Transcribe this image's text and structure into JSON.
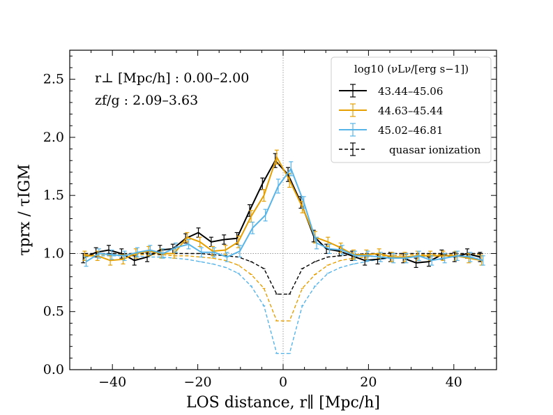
{
  "chart_data": {
    "type": "line",
    "xlabel": "LOS distance, r∥ [Mpc/h]",
    "ylabel": "τprx / τIGM",
    "xlim": [
      -50,
      50
    ],
    "ylim": [
      0.0,
      2.75
    ],
    "xticks": [
      -40,
      -20,
      0,
      20,
      40
    ],
    "xtick_labels": [
      "−40",
      "−20",
      "0",
      "20",
      "40"
    ],
    "yticks": [
      0.0,
      0.5,
      1.0,
      1.5,
      2.0,
      2.5
    ],
    "ytick_labels": [
      "0.0",
      "0.5",
      "1.0",
      "1.5",
      "2.0",
      "2.5"
    ],
    "reference_lines": {
      "x": 0,
      "y": 1.0
    },
    "annotations": {
      "rperp": "r⊥ [Mpc/h] : 0.00–2.00",
      "zfg": "zf/g : 2.09–3.63"
    },
    "legend": {
      "title": "log10 (νLν/[erg s−1])",
      "location": "upper right"
    },
    "x": [
      -46.5,
      -43.5,
      -40.5,
      -37.5,
      -34.5,
      -31.5,
      -28.5,
      -25.5,
      -22.5,
      -19.5,
      -16.5,
      -13.5,
      -10.5,
      -7.5,
      -4.5,
      -1.5,
      1.5,
      4.5,
      7.5,
      10.5,
      13.5,
      16.5,
      19.5,
      22.5,
      25.5,
      28.5,
      31.5,
      34.5,
      37.5,
      40.5,
      43.5,
      46.5
    ],
    "series": [
      {
        "name": "43.44–45.06",
        "color": "#000000",
        "values": [
          0.96,
          1.01,
          1.03,
          1.0,
          0.94,
          0.97,
          1.03,
          1.04,
          1.13,
          1.18,
          1.1,
          1.12,
          1.13,
          1.37,
          1.6,
          1.8,
          1.68,
          1.44,
          1.15,
          1.04,
          1.02,
          0.98,
          0.94,
          0.95,
          0.97,
          0.96,
          0.92,
          0.93,
          0.99,
          0.97,
          1.0,
          0.97
        ],
        "err": [
          0.04,
          0.04,
          0.04,
          0.04,
          0.04,
          0.04,
          0.04,
          0.04,
          0.04,
          0.04,
          0.04,
          0.04,
          0.05,
          0.05,
          0.05,
          0.06,
          0.06,
          0.05,
          0.05,
          0.04,
          0.04,
          0.04,
          0.04,
          0.04,
          0.04,
          0.04,
          0.04,
          0.04,
          0.04,
          0.04,
          0.04,
          0.04
        ]
      },
      {
        "name": "44.63–45.44",
        "color": "#e69f00",
        "values": [
          0.98,
          0.98,
          0.94,
          0.95,
          1.0,
          1.02,
          1.0,
          1.0,
          1.14,
          1.1,
          1.02,
          1.03,
          1.1,
          1.32,
          1.5,
          1.83,
          1.63,
          1.4,
          1.14,
          1.1,
          1.05,
          0.99,
          0.99,
          1.0,
          0.97,
          0.97,
          0.98,
          0.98,
          0.98,
          0.98,
          0.96,
          0.94
        ],
        "err": [
          0.04,
          0.04,
          0.04,
          0.04,
          0.04,
          0.04,
          0.04,
          0.04,
          0.04,
          0.04,
          0.04,
          0.04,
          0.05,
          0.05,
          0.05,
          0.06,
          0.06,
          0.05,
          0.05,
          0.04,
          0.04,
          0.04,
          0.04,
          0.04,
          0.04,
          0.04,
          0.04,
          0.04,
          0.04,
          0.04,
          0.04,
          0.04
        ]
      },
      {
        "name": "45.02–46.81",
        "color": "#56b4e9",
        "values": [
          0.93,
          1.0,
          0.99,
          0.98,
          1.01,
          1.03,
          1.0,
          1.05,
          1.08,
          1.01,
          1.01,
          0.97,
          1.02,
          1.22,
          1.33,
          1.58,
          1.73,
          1.44,
          1.09,
          1.04,
          1.03,
          0.98,
          0.98,
          0.97,
          0.96,
          0.96,
          0.98,
          0.94,
          0.96,
          0.98,
          0.97,
          0.94
        ],
        "err": [
          0.04,
          0.04,
          0.04,
          0.04,
          0.04,
          0.04,
          0.04,
          0.04,
          0.04,
          0.04,
          0.04,
          0.04,
          0.05,
          0.05,
          0.05,
          0.06,
          0.06,
          0.05,
          0.05,
          0.04,
          0.04,
          0.04,
          0.04,
          0.04,
          0.04,
          0.04,
          0.04,
          0.04,
          0.04,
          0.04,
          0.04,
          0.04
        ]
      }
    ],
    "model_series": [
      {
        "name": "quasar ionization",
        "color": "#000000",
        "values": [
          1.0,
          1.0,
          1.0,
          1.0,
          1.0,
          1.0,
          1.0,
          1.0,
          1.0,
          1.0,
          0.99,
          0.98,
          0.97,
          0.93,
          0.87,
          0.65,
          0.65,
          0.87,
          0.93,
          0.97,
          0.98,
          0.99,
          1.0,
          1.0,
          1.0,
          1.0,
          1.0,
          1.0,
          1.0,
          1.0,
          1.0,
          1.0
        ]
      },
      {
        "name": "",
        "color": "#e69f00",
        "values": [
          0.99,
          0.99,
          0.99,
          0.99,
          0.99,
          0.99,
          0.99,
          0.98,
          0.98,
          0.97,
          0.96,
          0.94,
          0.9,
          0.82,
          0.7,
          0.42,
          0.42,
          0.7,
          0.82,
          0.9,
          0.94,
          0.96,
          0.97,
          0.98,
          0.98,
          0.99,
          0.99,
          0.99,
          0.99,
          0.99,
          0.99,
          0.99
        ]
      },
      {
        "name": "",
        "color": "#56b4e9",
        "values": [
          0.98,
          0.98,
          0.98,
          0.98,
          0.98,
          0.97,
          0.97,
          0.96,
          0.95,
          0.93,
          0.91,
          0.88,
          0.83,
          0.72,
          0.55,
          0.14,
          0.14,
          0.55,
          0.72,
          0.83,
          0.88,
          0.91,
          0.93,
          0.95,
          0.96,
          0.97,
          0.97,
          0.98,
          0.98,
          0.98,
          0.98,
          0.98
        ]
      }
    ]
  }
}
